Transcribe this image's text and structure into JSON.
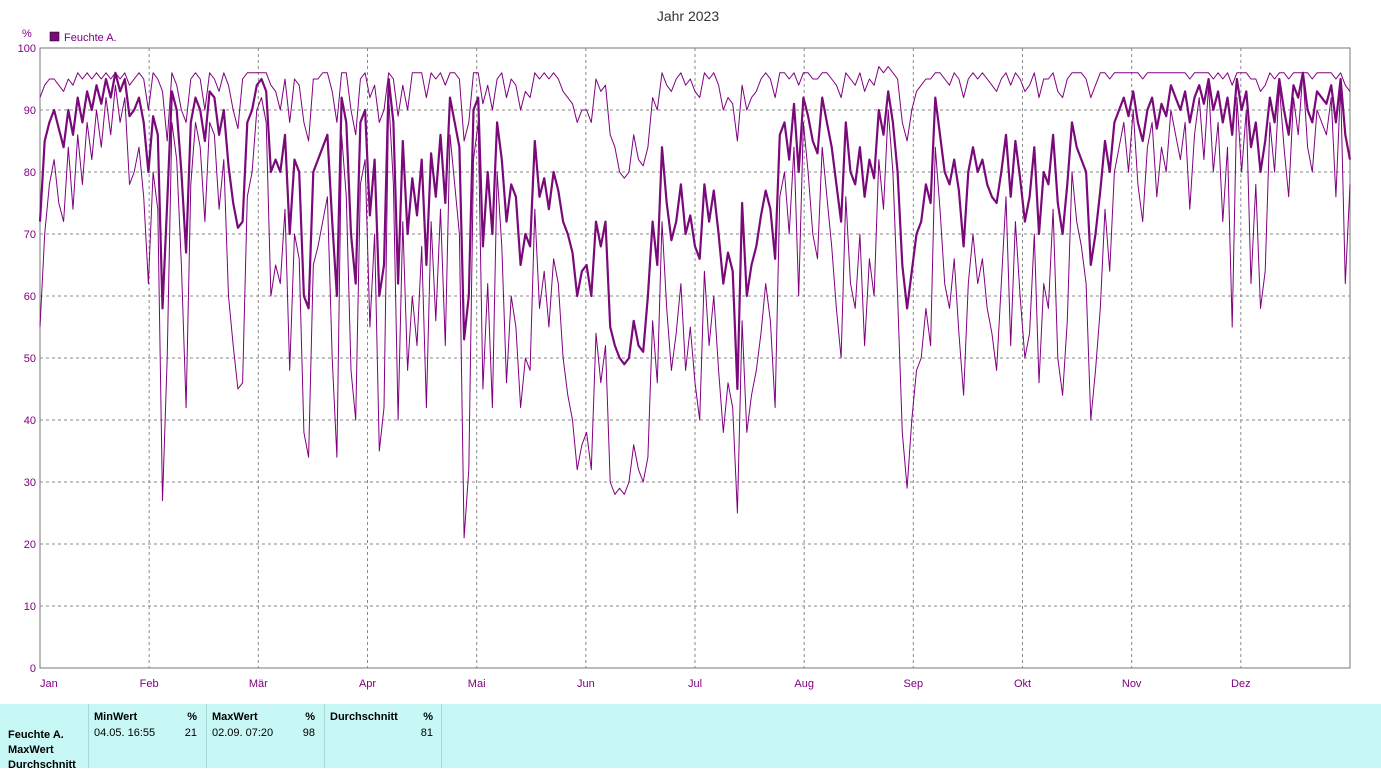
{
  "chart_data": {
    "type": "line",
    "title": "Jahr 2023",
    "ylabel": "%",
    "ylim": [
      0,
      100
    ],
    "yticks": [
      0,
      10,
      20,
      30,
      40,
      50,
      60,
      70,
      80,
      90,
      100
    ],
    "xticks": [
      "Jan",
      "Feb",
      "Mär",
      "Apr",
      "Mai",
      "Jun",
      "Jul",
      "Aug",
      "Sep",
      "Okt",
      "Nov",
      "Dez"
    ],
    "grid": true,
    "legend": {
      "position": "top-left",
      "entries": [
        "Feuchte A."
      ]
    },
    "series": [
      {
        "name": "Feuchte A.",
        "color": "#7a0a7a",
        "values": [
          72,
          85,
          88,
          90,
          87,
          84,
          90,
          86,
          92,
          88,
          93,
          90,
          94,
          91,
          95,
          92,
          96,
          93,
          95,
          89,
          90,
          92,
          88,
          80,
          89,
          86,
          58,
          75,
          93,
          90,
          80,
          67,
          88,
          92,
          90,
          85,
          93,
          92,
          86,
          90,
          81,
          75,
          71,
          72,
          88,
          90,
          94,
          95,
          93,
          80,
          82,
          80,
          86,
          70,
          82,
          80,
          60,
          58,
          80,
          82,
          84,
          86,
          72,
          60,
          92,
          88,
          70,
          62,
          88,
          90,
          73,
          82,
          60,
          65,
          95,
          88,
          62,
          85,
          70,
          79,
          73,
          82,
          65,
          83,
          76,
          86,
          75,
          92,
          88,
          84,
          53,
          60,
          90,
          92,
          68,
          80,
          70,
          88,
          82,
          72,
          78,
          76,
          65,
          70,
          68,
          85,
          76,
          79,
          74,
          80,
          77,
          72,
          70,
          67,
          60,
          64,
          65,
          60,
          72,
          68,
          72,
          55,
          52,
          50,
          49,
          50,
          56,
          52,
          51,
          60,
          72,
          65,
          84,
          75,
          69,
          72,
          78,
          70,
          73,
          68,
          66,
          78,
          72,
          77,
          70,
          62,
          67,
          64,
          45,
          75,
          60,
          65,
          68,
          73,
          77,
          74,
          66,
          86,
          88,
          82,
          91,
          80,
          92,
          89,
          85,
          83,
          92,
          88,
          84,
          78,
          72,
          88,
          80,
          78,
          84,
          76,
          82,
          79,
          90,
          86,
          93,
          88,
          80,
          65,
          58,
          64,
          70,
          72,
          78,
          75,
          92,
          86,
          80,
          78,
          82,
          77,
          68,
          80,
          84,
          80,
          82,
          78,
          76,
          75,
          80,
          86,
          76,
          85,
          79,
          72,
          76,
          84,
          70,
          80,
          78,
          86,
          75,
          70,
          78,
          88,
          84,
          82,
          80,
          65,
          70,
          77,
          85,
          80,
          88,
          90,
          92,
          89,
          93,
          88,
          85,
          90,
          92,
          87,
          91,
          89,
          94,
          92,
          90,
          93,
          88,
          92,
          94,
          91,
          95,
          90,
          93,
          88,
          92,
          86,
          95,
          90,
          93,
          84,
          88,
          80,
          85,
          92,
          88,
          95,
          90,
          86,
          94,
          92,
          96,
          90,
          88,
          93,
          92,
          91,
          94,
          88,
          95,
          86,
          82
        ]
      },
      {
        "name": "",
        "color": "#800080",
        "values": [
          92,
          94,
          95,
          95,
          94,
          93,
          95,
          94,
          96,
          95,
          96,
          95,
          96,
          95,
          96,
          95,
          96,
          95,
          96,
          94,
          95,
          96,
          95,
          90,
          96,
          95,
          93,
          85,
          96,
          94,
          90,
          88,
          95,
          96,
          95,
          90,
          96,
          95,
          93,
          96,
          94,
          90,
          87,
          95,
          96,
          96,
          96,
          96,
          96,
          94,
          93,
          90,
          95,
          88,
          95,
          94,
          88,
          85,
          95,
          95,
          96,
          96,
          93,
          88,
          96,
          96,
          90,
          86,
          95,
          96,
          92,
          94,
          88,
          90,
          96,
          95,
          89,
          94,
          90,
          96,
          96,
          96,
          92,
          96,
          95,
          96,
          94,
          96,
          96,
          95,
          85,
          88,
          96,
          96,
          91,
          94,
          90,
          95,
          96,
          92,
          95,
          94,
          90,
          93,
          92,
          96,
          95,
          96,
          95,
          96,
          95,
          93,
          92,
          91,
          88,
          90,
          90,
          88,
          95,
          93,
          94,
          86,
          84,
          80,
          79,
          80,
          86,
          82,
          81,
          84,
          92,
          90,
          96,
          94,
          93,
          95,
          96,
          94,
          95,
          93,
          92,
          96,
          95,
          96,
          94,
          90,
          92,
          91,
          85,
          94,
          90,
          92,
          93,
          95,
          96,
          95,
          92,
          96,
          96,
          95,
          96,
          94,
          96,
          96,
          95,
          95,
          96,
          96,
          95,
          94,
          92,
          96,
          95,
          94,
          96,
          93,
          95,
          94,
          97,
          96,
          97,
          96,
          95,
          88,
          85,
          90,
          93,
          94,
          95,
          95,
          96,
          96,
          95,
          94,
          96,
          95,
          92,
          95,
          96,
          95,
          96,
          95,
          94,
          93,
          95,
          96,
          94,
          96,
          95,
          93,
          94,
          96,
          92,
          95,
          95,
          96,
          93,
          92,
          95,
          96,
          96,
          96,
          95,
          92,
          94,
          96,
          96,
          95,
          96,
          96,
          96,
          96,
          96,
          96,
          95,
          96,
          96,
          96,
          96,
          96,
          96,
          96,
          96,
          96,
          95,
          96,
          96,
          96,
          96,
          95,
          96,
          95,
          96,
          94,
          96,
          96,
          96,
          95,
          95,
          93,
          94,
          96,
          95,
          96,
          96,
          95,
          96,
          96,
          96,
          96,
          95,
          96,
          96,
          96,
          96,
          95,
          96,
          94,
          93
        ]
      },
      {
        "name": "",
        "color": "#800080",
        "values": [
          55,
          70,
          78,
          82,
          75,
          72,
          84,
          74,
          86,
          78,
          88,
          82,
          90,
          84,
          92,
          86,
          94,
          88,
          92,
          78,
          80,
          84,
          76,
          62,
          80,
          74,
          27,
          50,
          88,
          82,
          65,
          42,
          78,
          88,
          84,
          72,
          88,
          86,
          74,
          82,
          60,
          52,
          45,
          46,
          76,
          80,
          90,
          92,
          88,
          60,
          65,
          62,
          74,
          48,
          70,
          66,
          38,
          34,
          65,
          68,
          72,
          76,
          50,
          34,
          86,
          76,
          48,
          40,
          78,
          82,
          55,
          70,
          35,
          42,
          92,
          78,
          40,
          72,
          48,
          60,
          52,
          68,
          42,
          72,
          56,
          74,
          52,
          86,
          78,
          70,
          21,
          32,
          82,
          88,
          45,
          62,
          42,
          80,
          68,
          46,
          60,
          55,
          42,
          50,
          48,
          74,
          58,
          64,
          55,
          66,
          62,
          50,
          44,
          40,
          32,
          36,
          38,
          32,
          54,
          46,
          52,
          30,
          28,
          29,
          28,
          30,
          36,
          32,
          30,
          34,
          56,
          46,
          72,
          58,
          48,
          54,
          62,
          48,
          55,
          46,
          40,
          64,
          52,
          60,
          48,
          38,
          46,
          42,
          25,
          56,
          38,
          44,
          48,
          54,
          62,
          56,
          42,
          76,
          80,
          70,
          84,
          60,
          88,
          80,
          70,
          66,
          84,
          76,
          68,
          58,
          50,
          76,
          62,
          58,
          70,
          52,
          66,
          60,
          82,
          74,
          90,
          80,
          60,
          38,
          29,
          40,
          48,
          50,
          58,
          52,
          84,
          74,
          62,
          58,
          66,
          54,
          44,
          62,
          70,
          62,
          66,
          58,
          54,
          48,
          62,
          76,
          52,
          72,
          60,
          50,
          54,
          70,
          46,
          62,
          58,
          74,
          50,
          44,
          56,
          80,
          72,
          68,
          62,
          40,
          48,
          58,
          74,
          64,
          80,
          84,
          88,
          80,
          90,
          78,
          72,
          84,
          88,
          76,
          84,
          80,
          90,
          86,
          82,
          88,
          74,
          86,
          92,
          82,
          94,
          80,
          88,
          72,
          84,
          55,
          92,
          80,
          90,
          62,
          78,
          58,
          64,
          88,
          80,
          94,
          84,
          76,
          92,
          86,
          96,
          84,
          80,
          90,
          88,
          86,
          92,
          76,
          94,
          62,
          78
        ]
      }
    ]
  },
  "stats": {
    "row_labels": [
      "Feuchte A.",
      "MaxWert",
      "Durchschnitt"
    ],
    "columns": [
      {
        "header": "MinWert",
        "unit": "%",
        "value": "04.05.  16:55",
        "number": "21"
      },
      {
        "header": "MaxWert",
        "unit": "%",
        "value": "02.09.  07:20",
        "number": "98"
      },
      {
        "header": "Durchschnitt",
        "unit": "%",
        "value": "",
        "number": "81"
      }
    ]
  }
}
